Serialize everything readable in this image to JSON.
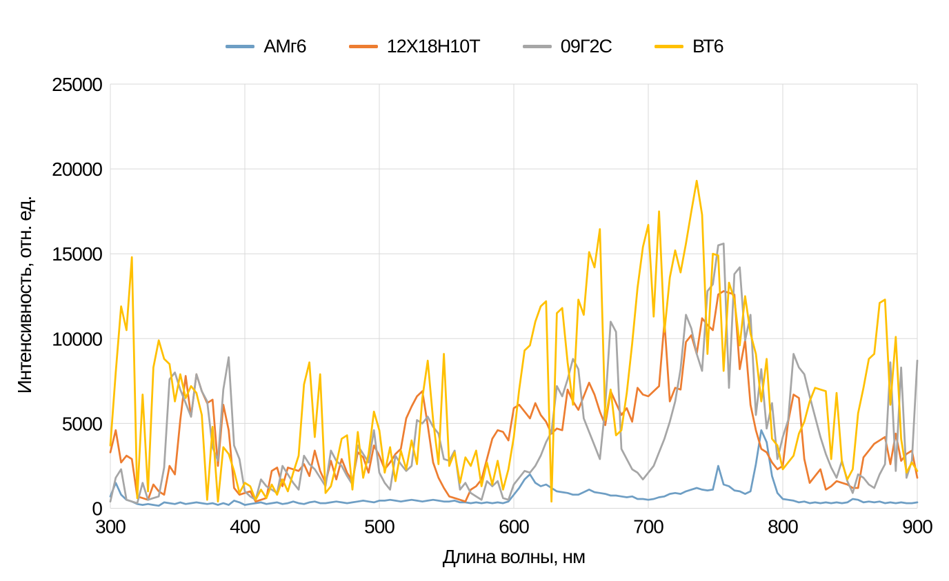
{
  "chart_data": {
    "type": "line",
    "title": "",
    "xlabel": "Длина волны, нм",
    "ylabel": "Интенсивность, отн. ед.",
    "xlim": [
      300,
      900
    ],
    "ylim": [
      0,
      25000
    ],
    "x_ticks": [
      300,
      400,
      500,
      600,
      700,
      800,
      900
    ],
    "y_ticks": [
      0,
      5000,
      10000,
      15000,
      20000,
      25000
    ],
    "grid": true,
    "legend_position": "top",
    "grid_color": "#D9D9D9",
    "x_start": 300,
    "x_step": 4,
    "series": [
      {
        "name": "АМг6",
        "key": "amg6",
        "color": "#6E9EC4",
        "values": [
          700,
          1500,
          800,
          500,
          400,
          250,
          200,
          250,
          200,
          150,
          350,
          300,
          250,
          350,
          250,
          300,
          350,
          300,
          250,
          300,
          200,
          300,
          200,
          450,
          350,
          200,
          250,
          300,
          350,
          250,
          300,
          350,
          250,
          300,
          400,
          300,
          250,
          350,
          400,
          300,
          300,
          350,
          400,
          350,
          300,
          350,
          400,
          450,
          400,
          350,
          450,
          450,
          500,
          450,
          400,
          450,
          500,
          450,
          400,
          450,
          500,
          450,
          400,
          400,
          450,
          350,
          350,
          300,
          350,
          300,
          350,
          300,
          350,
          300,
          400,
          800,
          1200,
          1700,
          2000,
          1500,
          1300,
          1400,
          1200,
          1000,
          950,
          900,
          800,
          800,
          950,
          1100,
          950,
          900,
          850,
          750,
          750,
          700,
          650,
          700,
          550,
          550,
          500,
          550,
          650,
          700,
          850,
          900,
          850,
          1000,
          1100,
          1200,
          1100,
          1050,
          1100,
          2500,
          1400,
          1300,
          1050,
          1000,
          850,
          1000,
          2600,
          4600,
          3900,
          1900,
          900,
          550,
          500,
          450,
          350,
          400,
          300,
          350,
          300,
          350,
          300,
          350,
          300,
          350,
          550,
          500,
          350,
          400,
          350,
          400,
          300,
          350,
          300,
          350,
          300,
          300,
          350
        ]
      },
      {
        "name": "12Х18Н10Т",
        "key": "12x18n10t",
        "color": "#ED7D31",
        "values": [
          3300,
          4600,
          2700,
          3100,
          2900,
          700,
          600,
          500,
          1400,
          1000,
          800,
          2500,
          2000,
          5200,
          7800,
          5400,
          7900,
          6900,
          6200,
          6400,
          2500,
          6100,
          4600,
          1200,
          800,
          900,
          1000,
          400,
          500,
          600,
          2200,
          2400,
          1300,
          2400,
          2300,
          2200,
          2600,
          1900,
          3400,
          2200,
          1500,
          2800,
          1700,
          2900,
          2100,
          1600,
          3300,
          3000,
          2100,
          3700,
          3100,
          2300,
          2700,
          3200,
          3500,
          5300,
          6000,
          6600,
          6900,
          4900,
          2700,
          1800,
          1200,
          700,
          600,
          500,
          400,
          1100,
          1300,
          1700,
          2900,
          4100,
          4600,
          4500,
          4000,
          5900,
          6100,
          5700,
          5300,
          6200,
          5500,
          5100,
          4400,
          4700,
          4600,
          7000,
          6300,
          5800,
          6600,
          7400,
          6700,
          5700,
          4900,
          6900,
          6200,
          5500,
          5900,
          5100,
          7100,
          6700,
          6600,
          6900,
          7200,
          11000,
          6300,
          7100,
          7000,
          9800,
          10200,
          9100,
          11200,
          10800,
          10500,
          12600,
          12800,
          12700,
          12600,
          8200,
          9900,
          6100,
          4600,
          3500,
          3300,
          2700,
          2300,
          2500,
          5100,
          6700,
          6500,
          2900,
          1500,
          1900,
          2300,
          1100,
          1300,
          1600,
          1500,
          1400,
          1200,
          1200,
          3000,
          3400,
          3800,
          4000,
          4200,
          2600,
          4400,
          2800,
          3200,
          3400,
          1800
        ]
      },
      {
        "name": "09Г2С",
        "key": "09g2s",
        "color": "#A6A6A6",
        "values": [
          400,
          1800,
          2300,
          500,
          400,
          300,
          1500,
          500,
          600,
          700,
          2400,
          7600,
          8000,
          7000,
          6200,
          5400,
          7900,
          6900,
          6300,
          3600,
          2800,
          7000,
          8900,
          3700,
          2900,
          1000,
          700,
          500,
          1700,
          1300,
          1100,
          900,
          2500,
          2000,
          1500,
          1100,
          3100,
          2600,
          2300,
          1800,
          1300,
          3400,
          2800,
          2500,
          1900,
          1400,
          3700,
          3200,
          2700,
          4600,
          2100,
          1500,
          1100,
          3100,
          2600,
          2200,
          2500,
          5200,
          5000,
          5400,
          4800,
          4400,
          2900,
          2800,
          3400,
          1100,
          1500,
          900,
          700,
          500,
          1600,
          1300,
          1600,
          600,
          500,
          1400,
          1800,
          2200,
          2100,
          2500,
          3100,
          3900,
          4500,
          7200,
          6600,
          7600,
          8800,
          8200,
          5300,
          4500,
          3700,
          2900,
          6000,
          11000,
          10400,
          3500,
          2900,
          2300,
          2100,
          1700,
          2100,
          2500,
          3300,
          4100,
          5100,
          6300,
          8200,
          11400,
          10600,
          9100,
          8100,
          12800,
          13200,
          15500,
          15600,
          7100,
          13800,
          14200,
          9900,
          11400,
          5500,
          8200,
          4700,
          6200,
          2900,
          4200,
          5200,
          9100,
          8300,
          7900,
          6600,
          5400,
          4200,
          3200,
          2400,
          1800,
          2800,
          1600,
          900,
          2000,
          1800,
          1400,
          1200,
          2000,
          2600,
          8600,
          2200,
          8300,
          1800,
          2800,
          8700
        ]
      },
      {
        "name": "ВТ6",
        "key": "vt6",
        "color": "#FFC000",
        "values": [
          3700,
          8000,
          11900,
          10500,
          14800,
          600,
          6700,
          1000,
          8300,
          9900,
          8800,
          8500,
          6300,
          7900,
          6500,
          7200,
          6800,
          5500,
          500,
          4800,
          400,
          3600,
          3200,
          2200,
          900,
          1500,
          1300,
          500,
          1100,
          600,
          1400,
          800,
          1700,
          1000,
          2100,
          3100,
          7300,
          8600,
          4200,
          7900,
          900,
          1300,
          2600,
          4100,
          4300,
          1100,
          4500,
          1800,
          3200,
          5700,
          4600,
          2100,
          3600,
          1600,
          3400,
          2300,
          4000,
          2600,
          6500,
          8700,
          5200,
          2600,
          9100,
          2500,
          3300,
          1500,
          3000,
          2500,
          3400,
          1300,
          2700,
          1400,
          2800,
          1100,
          2300,
          4200,
          7000,
          9300,
          9600,
          11000,
          11900,
          12200,
          400,
          11500,
          11800,
          8600,
          6100,
          12300,
          11400,
          15100,
          14200,
          16450,
          5200,
          7000,
          4300,
          4600,
          6800,
          9700,
          13000,
          15400,
          16700,
          11300,
          17500,
          10400,
          13600,
          15200,
          13900,
          15600,
          17500,
          19300,
          17300,
          9100,
          15000,
          14900,
          8100,
          13300,
          12300,
          9600,
          12500,
          10300,
          9100,
          6300,
          8800,
          4100,
          3700,
          2300,
          2700,
          3100,
          4400,
          5100,
          6300,
          7100,
          7000,
          6900,
          2900,
          6800,
          2700,
          1700,
          2300,
          5600,
          7100,
          8800,
          9100,
          12100,
          12300,
          6100,
          10100,
          4100,
          2100,
          2700,
          2200
        ]
      }
    ]
  }
}
